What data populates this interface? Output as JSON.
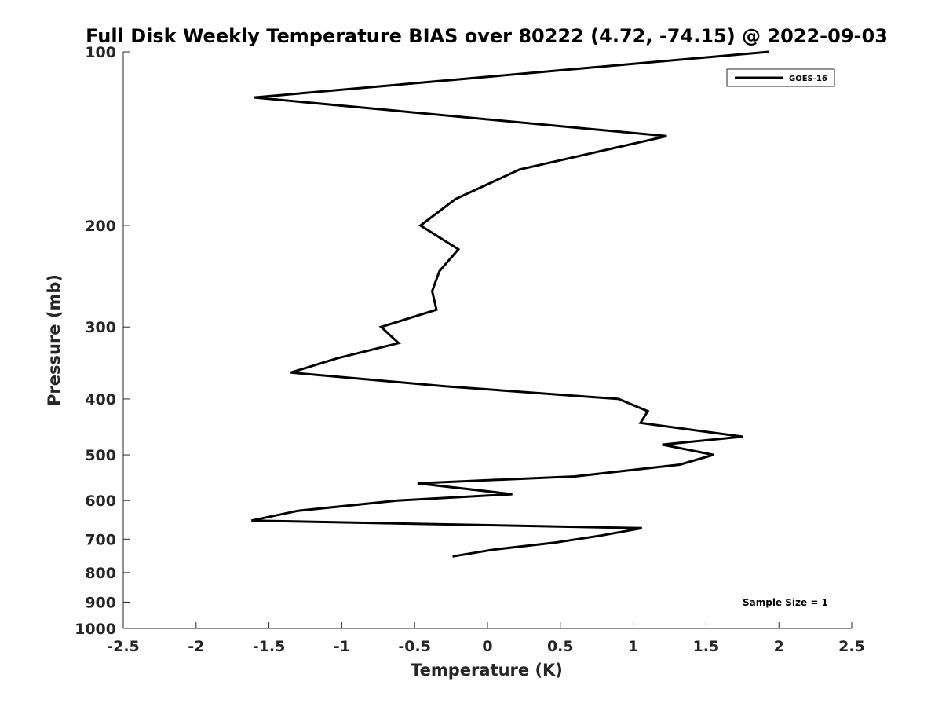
{
  "chart_data": {
    "type": "line",
    "title": "Full Disk Weekly Temperature BIAS over 80222 (4.72, -74.15) @ 2022-09-03",
    "xlabel": "Temperature (K)",
    "ylabel": "Pressure (mb)",
    "xlim": [
      -2.5,
      2.5
    ],
    "ylim": [
      100,
      1000
    ],
    "y_scale": "log",
    "y_reversed": true,
    "x_ticks": [
      -2.5,
      -2,
      -1.5,
      -1,
      -0.5,
      0,
      0.5,
      1,
      1.5,
      2,
      2.5
    ],
    "x_tick_labels": [
      "-2.5",
      "-2",
      "-1.5",
      "-1",
      "-0.5",
      "0",
      "0.5",
      "1",
      "1.5",
      "2",
      "2.5"
    ],
    "y_ticks": [
      100,
      200,
      300,
      400,
      500,
      600,
      700,
      800,
      900,
      1000
    ],
    "y_tick_labels": [
      "100",
      "200",
      "300",
      "400",
      "500",
      "600",
      "700",
      "800",
      "900",
      "1000"
    ],
    "grid": false,
    "legend_position": "top-right",
    "annotation": "Sample Size = 1",
    "series": [
      {
        "name": "GOES-16",
        "color": "#000000",
        "points": [
          {
            "x": 1.93,
            "y": 100
          },
          {
            "x": -1.6,
            "y": 120
          },
          {
            "x": 1.23,
            "y": 140
          },
          {
            "x": 0.22,
            "y": 160
          },
          {
            "x": -0.22,
            "y": 180
          },
          {
            "x": -0.46,
            "y": 200
          },
          {
            "x": -0.2,
            "y": 220
          },
          {
            "x": -0.33,
            "y": 240
          },
          {
            "x": -0.38,
            "y": 260
          },
          {
            "x": -0.35,
            "y": 280
          },
          {
            "x": -0.73,
            "y": 300
          },
          {
            "x": -0.61,
            "y": 320
          },
          {
            "x": -1.03,
            "y": 340
          },
          {
            "x": -1.35,
            "y": 360
          },
          {
            "x": -0.3,
            "y": 380
          },
          {
            "x": 0.9,
            "y": 400
          },
          {
            "x": 1.1,
            "y": 420
          },
          {
            "x": 1.05,
            "y": 440
          },
          {
            "x": 1.75,
            "y": 465
          },
          {
            "x": 1.2,
            "y": 480
          },
          {
            "x": 1.55,
            "y": 500
          },
          {
            "x": 1.32,
            "y": 520
          },
          {
            "x": 0.6,
            "y": 545
          },
          {
            "x": -0.48,
            "y": 560
          },
          {
            "x": 0.17,
            "y": 585
          },
          {
            "x": -0.62,
            "y": 600
          },
          {
            "x": -1.3,
            "y": 625
          },
          {
            "x": -1.62,
            "y": 650
          },
          {
            "x": 1.06,
            "y": 670
          },
          {
            "x": 0.78,
            "y": 690
          },
          {
            "x": 0.46,
            "y": 710
          },
          {
            "x": 0.04,
            "y": 730
          },
          {
            "x": -0.24,
            "y": 750
          }
        ]
      }
    ]
  }
}
